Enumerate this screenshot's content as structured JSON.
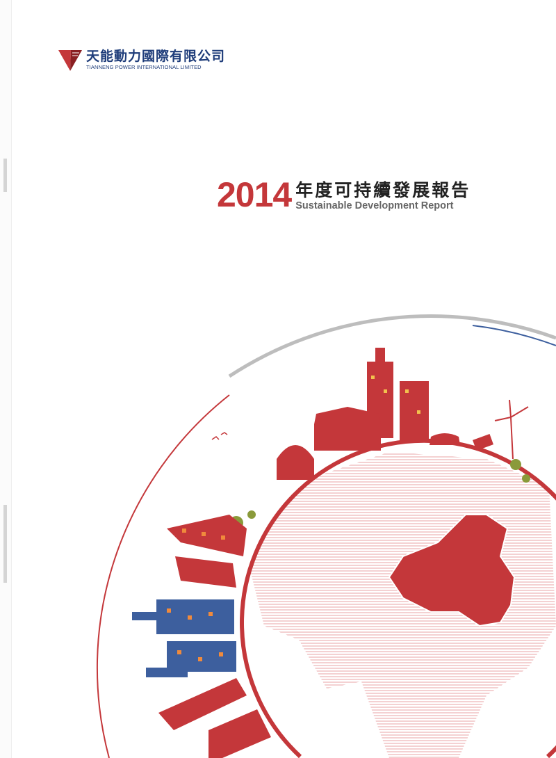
{
  "company": {
    "name_cn": "天能動力國際有限公司",
    "name_en": "TIANNENG POWER INTERNATIONAL LIMITED"
  },
  "report": {
    "year": "2014",
    "title_cn": "年度可持續發展報告",
    "title_en": "Sustainable Development Report"
  },
  "colors": {
    "brand_red": "#c4373a",
    "brand_blue": "#1f3d7a",
    "arc_gray": "#b9b9b9",
    "building_blue": "#3d5f9e"
  }
}
